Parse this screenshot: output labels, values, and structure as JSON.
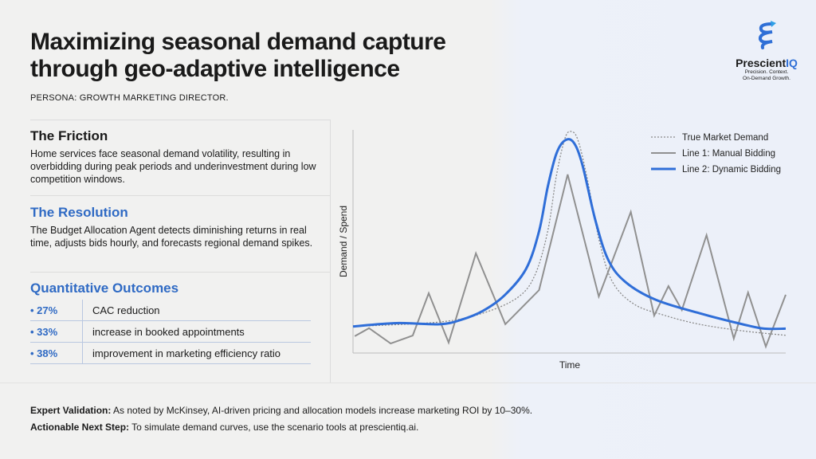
{
  "header": {
    "title_line1": "Maximizing seasonal demand capture",
    "title_line2": "through geo-adaptive intelligence",
    "persona": "PERSONA: GROWTH MARKETING DIRECTOR."
  },
  "logo": {
    "name_a": "Prescient",
    "name_b": "IQ",
    "tagline1": "Precision. Context.",
    "tagline2": "On-Demand Growth.",
    "color": "#2f6fd6"
  },
  "friction": {
    "heading": "The Friction",
    "body": "Home services face seasonal demand volatility, resulting in overbidding during peak periods and underinvestment during low competition windows."
  },
  "resolution": {
    "heading": "The Resolution",
    "body": "The Budget Allocation Agent detects diminishing returns in real time, adjusts bids hourly, and forecasts regional demand spikes."
  },
  "outcomes": {
    "heading": "Quantitative Outcomes",
    "items": [
      {
        "pct": "• 27%",
        "text": "CAC reduction"
      },
      {
        "pct": "• 33%",
        "text": "increase in booked appointments"
      },
      {
        "pct": "• 38%",
        "text": "improvement in marketing efficiency ratio"
      }
    ]
  },
  "footer": {
    "expert_label": "Expert Validation:",
    "expert_text": " As noted by McKinsey, AI-driven pricing and allocation models increase marketing ROI by 10–30%.",
    "next_label": "Actionable Next Step:",
    "next_text": " To simulate demand curves, use the scenario tools at prescientiq.ai."
  },
  "chart_data": {
    "type": "line",
    "xlabel": "Time",
    "ylabel": "Demand / Spend",
    "xlim": [
      0,
      100
    ],
    "ylim": [
      0,
      100
    ],
    "grid": false,
    "legend": "top-right",
    "series": [
      {
        "name": "True Market Demand",
        "style": "dotted",
        "color": "#8a8a8a",
        "x": [
          0,
          20,
          30,
          38,
          42,
          45,
          47,
          49,
          50.5,
          52,
          54,
          57,
          60,
          65,
          72,
          80,
          90,
          100
        ],
        "y": [
          12,
          14,
          18,
          25,
          35,
          55,
          80,
          97,
          100,
          96,
          80,
          50,
          32,
          22,
          17,
          13,
          10,
          8
        ]
      },
      {
        "name": "Line 1: Manual Bidding",
        "style": "solid",
        "color": "#909090",
        "x": [
          0.4,
          3.7,
          8.7,
          13.8,
          17.5,
          22.1,
          28.4,
          35.2,
          43,
          49.6,
          56.8,
          64.2,
          69.6,
          72.9,
          76,
          81.7,
          88,
          91.3,
          95.4,
          100
        ],
        "y": [
          7.6,
          11.2,
          4.3,
          7.9,
          27,
          4.7,
          45,
          13,
          28.4,
          80.6,
          25.5,
          63.7,
          16.9,
          30.2,
          19.4,
          53.2,
          6.5,
          27.3,
          2.9,
          26.3
        ]
      },
      {
        "name": "Line 2: Dynamic Bidding",
        "style": "solid",
        "color": "#2f6ed8",
        "x": [
          0,
          10,
          20,
          25,
          30,
          35,
          40,
          43,
          45,
          47,
          49,
          51,
          53,
          56,
          59,
          63,
          70,
          80,
          90,
          95,
          100
        ],
        "y": [
          12,
          13.5,
          13,
          15,
          19,
          26,
          38,
          55,
          75,
          90,
          96,
          95,
          85,
          60,
          42,
          32,
          24,
          18,
          13,
          11,
          11
        ]
      }
    ]
  }
}
